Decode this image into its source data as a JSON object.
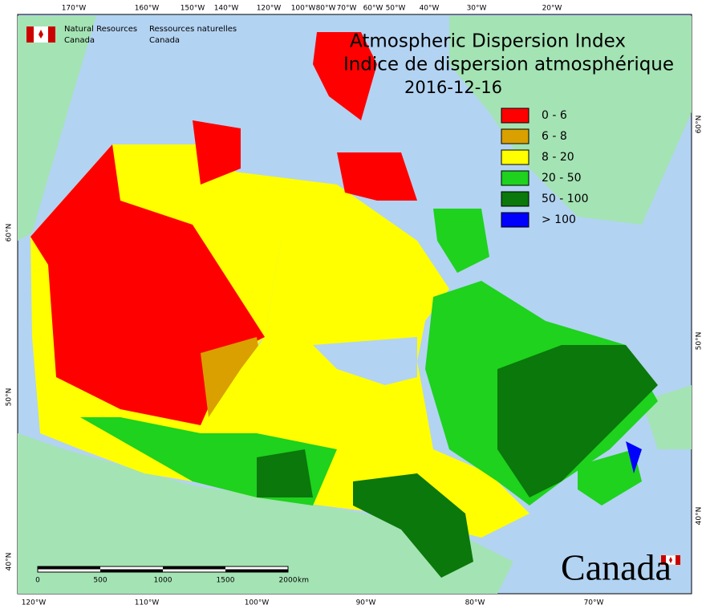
{
  "title": {
    "en": "Atmospheric Dispersion Index",
    "fr": "Indice de dispersion atmosphérique",
    "date": "2016-12-16"
  },
  "agency": {
    "en": [
      "Natural Resources",
      "Canada"
    ],
    "fr": [
      "Ressources naturelles",
      "Canada"
    ]
  },
  "legend": [
    {
      "label": "0 - 6",
      "color": "#ff0000"
    },
    {
      "label": "6 - 8",
      "color": "#d9a000"
    },
    {
      "label": "8 - 20",
      "color": "#ffff00"
    },
    {
      "label": "20 - 50",
      "color": "#1ed21e"
    },
    {
      "label": "50 - 100",
      "color": "#0a780a"
    },
    {
      "label": "> 100",
      "color": "#0000ff"
    }
  ],
  "top_labels": [
    "170°W",
    "160°W",
    "150°W",
    "140°W",
    "120°W",
    "100°W",
    "80°W",
    "70°W",
    "60°W",
    "50°W",
    "40°W",
    "30°W",
    "20°W"
  ],
  "bottom_labels": [
    "120°W",
    "110°W",
    "100°W",
    "90°W",
    "80°W",
    "70°W"
  ],
  "left_labels": [
    "60°N",
    "50°N",
    "40°N"
  ],
  "right_labels": [
    "60°N",
    "50°N",
    "40°N"
  ],
  "scale": {
    "ticks": [
      "0",
      "500",
      "1000",
      "1500",
      "2000"
    ],
    "unit": "km"
  },
  "wordmark": "Canada"
}
